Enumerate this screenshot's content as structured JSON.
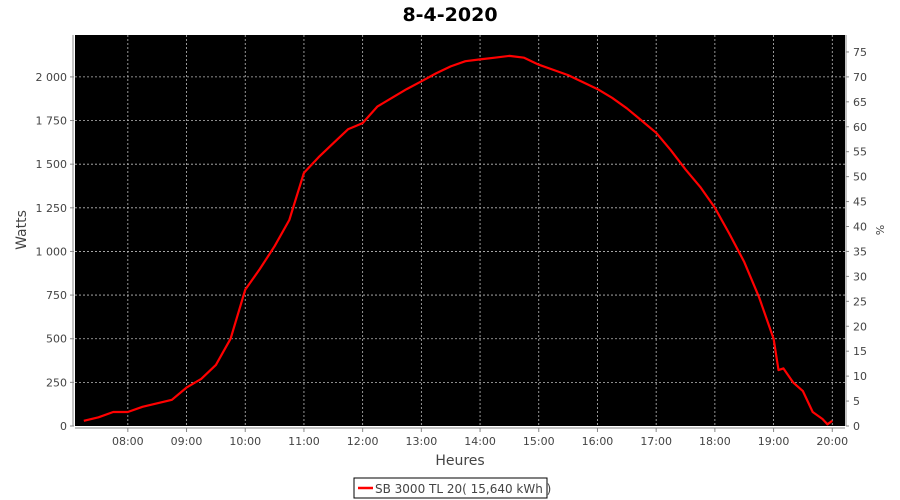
{
  "chart_data": {
    "type": "line",
    "title": "8-4-2020",
    "xlabel": "Heures",
    "ylabel": "Watts",
    "y2label": "%",
    "xlim": [
      "07:06",
      "20:13"
    ],
    "ylim": [
      0,
      2240
    ],
    "y2lim": [
      0,
      78.4
    ],
    "xticks": [
      "08:00",
      "09:00",
      "10:00",
      "11:00",
      "12:00",
      "13:00",
      "14:00",
      "15:00",
      "16:00",
      "17:00",
      "18:00",
      "19:00",
      "20:00"
    ],
    "yticks": [
      0,
      250,
      500,
      750,
      1000,
      1250,
      1500,
      1750,
      2000
    ],
    "ytick_labels": [
      "0",
      "250",
      "500",
      "750",
      "1 000",
      "1 250",
      "1 500",
      "1 750",
      "2 000"
    ],
    "y2ticks": [
      0,
      5,
      10,
      15,
      20,
      25,
      30,
      35,
      40,
      45,
      50,
      55,
      60,
      65,
      70,
      75
    ],
    "grid": true,
    "background": "#000000",
    "legend": {
      "position": "bottom",
      "entries": [
        "SB 3000 TL 20( 15,640 kWh )"
      ]
    },
    "series": [
      {
        "name": "SB 3000 TL 20( 15,640 kWh )",
        "color": "#ff0000",
        "x": [
          "07:15",
          "07:30",
          "07:45",
          "08:00",
          "08:15",
          "08:30",
          "08:45",
          "09:00",
          "09:15",
          "09:30",
          "09:45",
          "10:00",
          "10:15",
          "10:30",
          "10:45",
          "11:00",
          "11:15",
          "11:30",
          "11:45",
          "12:00",
          "12:15",
          "12:30",
          "12:45",
          "13:00",
          "13:15",
          "13:30",
          "13:45",
          "14:00",
          "14:15",
          "14:30",
          "14:45",
          "15:00",
          "15:15",
          "15:30",
          "15:45",
          "16:00",
          "16:15",
          "16:30",
          "16:45",
          "17:00",
          "17:15",
          "17:30",
          "17:45",
          "18:00",
          "18:15",
          "18:30",
          "18:45",
          "19:00",
          "19:05",
          "19:10",
          "19:20",
          "19:30",
          "19:40",
          "19:50",
          "19:55",
          "20:00"
        ],
        "y": [
          30,
          50,
          80,
          80,
          110,
          130,
          150,
          220,
          270,
          350,
          500,
          780,
          900,
          1030,
          1180,
          1450,
          1540,
          1620,
          1700,
          1735,
          1830,
          1880,
          1930,
          1975,
          2020,
          2060,
          2090,
          2100,
          2110,
          2120,
          2110,
          2070,
          2040,
          2010,
          1970,
          1930,
          1880,
          1820,
          1750,
          1680,
          1580,
          1470,
          1370,
          1250,
          1100,
          940,
          740,
          500,
          320,
          330,
          250,
          200,
          80,
          40,
          10,
          30
        ]
      }
    ]
  }
}
